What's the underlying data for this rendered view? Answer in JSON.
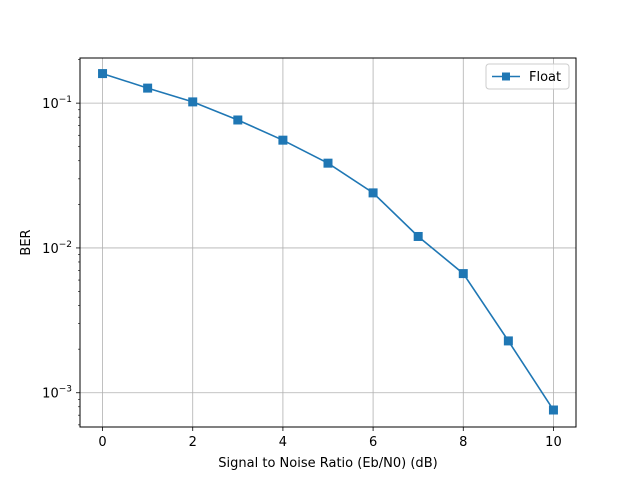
{
  "chart_data": {
    "type": "line",
    "xlabel": "Signal to Noise Ratio (Eb/N0) (dB)",
    "ylabel": "BER",
    "yscale": "log",
    "xlim": [
      -0.5,
      10.5
    ],
    "ylim": [
      0.00058,
      0.205
    ],
    "xticks": [
      0,
      2,
      4,
      6,
      8,
      10
    ],
    "xtick_labels": [
      "0",
      "2",
      "4",
      "6",
      "8",
      "10"
    ],
    "yticks": [
      0.001,
      0.01,
      0.1
    ],
    "ytick_labels": [
      {
        "base": "10",
        "exp": "−3"
      },
      {
        "base": "10",
        "exp": "−2"
      },
      {
        "base": "10",
        "exp": "−1"
      }
    ],
    "grid": true,
    "legend_position": "upper right",
    "series": [
      {
        "name": "Float",
        "color": "#1f77b4",
        "marker": "square",
        "x": [
          0,
          1,
          2,
          3,
          4,
          5,
          6,
          7,
          8,
          9,
          10
        ],
        "y": [
          0.16,
          0.127,
          0.102,
          0.0765,
          0.0555,
          0.0385,
          0.024,
          0.012,
          0.00665,
          0.00228,
          0.00076
        ]
      }
    ]
  }
}
